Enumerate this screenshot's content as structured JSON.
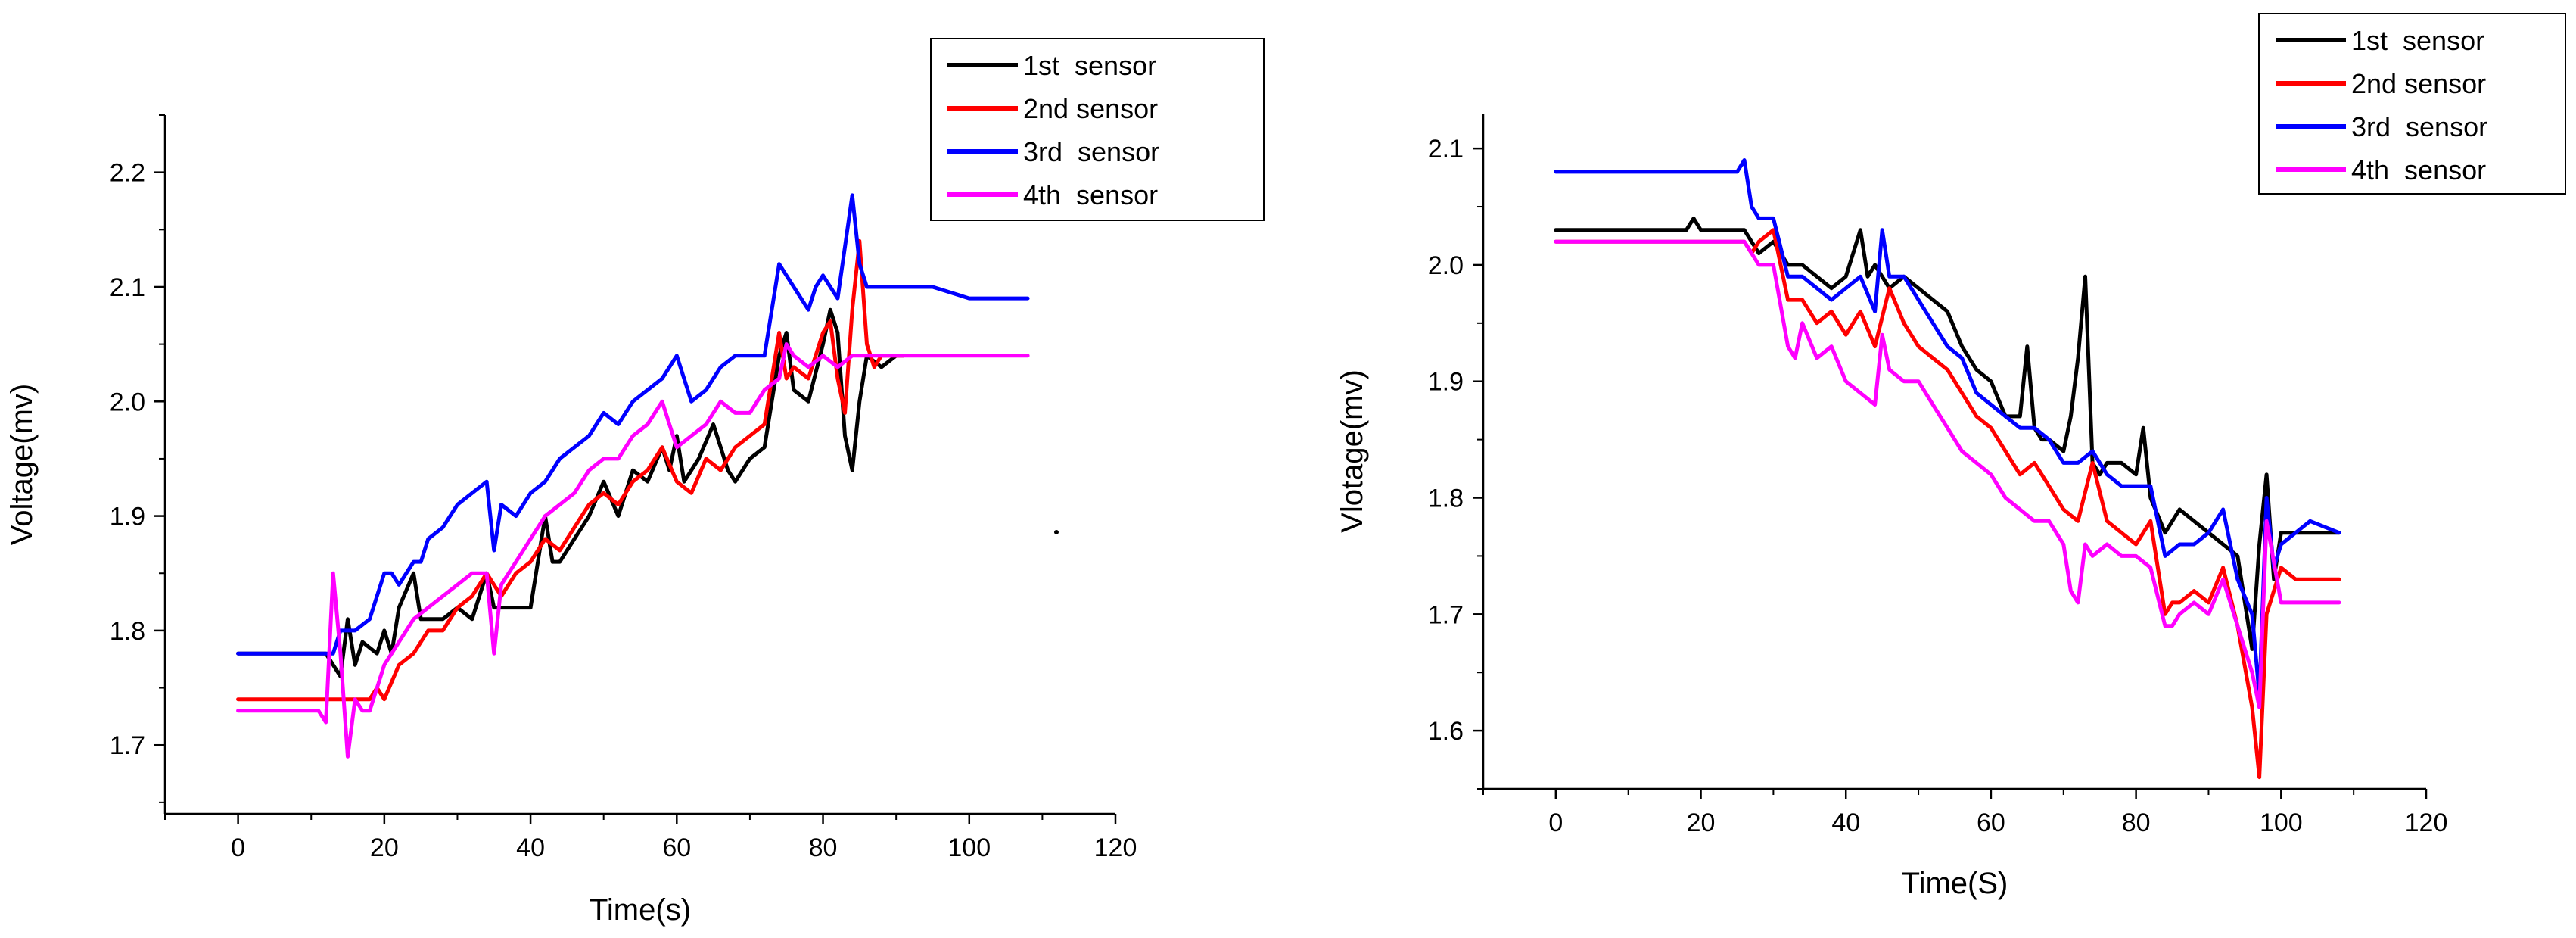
{
  "chart_data": [
    {
      "type": "line",
      "title": "",
      "xlabel": "Time(s)",
      "ylabel": "Voltage(mv)",
      "xlim": [
        -10,
        120
      ],
      "ylim": [
        1.64,
        2.25
      ],
      "xticks": [
        "0",
        "20",
        "40",
        "60",
        "80",
        "100",
        "120"
      ],
      "yticks": [
        "1.7",
        "1.8",
        "1.9",
        "2.0",
        "2.1",
        "2.2"
      ],
      "legend_position": "top-right",
      "series": [
        {
          "name": "1st  sensor",
          "color": "#000000",
          "x": [
            0,
            12,
            14,
            15,
            16,
            17,
            19,
            20,
            21,
            22,
            24,
            25,
            26,
            28,
            30,
            32,
            34,
            35,
            36,
            40,
            42,
            43,
            44,
            46,
            48,
            50,
            52,
            54,
            56,
            58,
            59,
            60,
            61,
            63,
            65,
            66,
            67,
            68,
            70,
            72,
            74,
            75,
            76,
            78,
            80,
            81,
            82,
            83,
            84,
            85,
            86,
            88,
            90,
            91
          ],
          "y": [
            1.78,
            1.78,
            1.76,
            1.81,
            1.77,
            1.79,
            1.78,
            1.8,
            1.78,
            1.82,
            1.85,
            1.81,
            1.81,
            1.81,
            1.82,
            1.81,
            1.85,
            1.82,
            1.82,
            1.82,
            1.9,
            1.86,
            1.86,
            1.88,
            1.9,
            1.93,
            1.9,
            1.94,
            1.93,
            1.96,
            1.94,
            1.97,
            1.93,
            1.95,
            1.98,
            1.96,
            1.94,
            1.93,
            1.95,
            1.96,
            2.04,
            2.06,
            2.01,
            2.0,
            2.05,
            2.08,
            2.06,
            1.97,
            1.94,
            2.0,
            2.04,
            2.03,
            2.04,
            2.04
          ]
        },
        {
          "name": "2nd sensor",
          "color": "#ff0000",
          "x": [
            0,
            18,
            19,
            20,
            22,
            24,
            26,
            28,
            30,
            32,
            34,
            36,
            38,
            40,
            42,
            44,
            46,
            48,
            50,
            52,
            54,
            56,
            58,
            60,
            62,
            64,
            66,
            68,
            70,
            72,
            74,
            75,
            76,
            78,
            80,
            81,
            82,
            83,
            84,
            85,
            86,
            87,
            88,
            90,
            91
          ],
          "y": [
            1.74,
            1.74,
            1.75,
            1.74,
            1.77,
            1.78,
            1.8,
            1.8,
            1.82,
            1.83,
            1.85,
            1.83,
            1.85,
            1.86,
            1.88,
            1.87,
            1.89,
            1.91,
            1.92,
            1.91,
            1.93,
            1.94,
            1.96,
            1.93,
            1.92,
            1.95,
            1.94,
            1.96,
            1.97,
            1.98,
            2.06,
            2.02,
            2.03,
            2.02,
            2.06,
            2.07,
            2.02,
            1.99,
            2.08,
            2.14,
            2.05,
            2.03,
            2.04,
            2.04,
            2.04
          ]
        },
        {
          "name": "3rd  sensor",
          "color": "#0000ff",
          "x": [
            0,
            13,
            14,
            16,
            18,
            20,
            21,
            22,
            24,
            25,
            26,
            28,
            30,
            32,
            34,
            35,
            36,
            38,
            40,
            42,
            44,
            46,
            48,
            50,
            52,
            54,
            56,
            58,
            60,
            62,
            64,
            66,
            68,
            70,
            72,
            74,
            75,
            76,
            78,
            79,
            80,
            82,
            84,
            85,
            86,
            88,
            90,
            95,
            100,
            108
          ],
          "y": [
            1.78,
            1.78,
            1.8,
            1.8,
            1.81,
            1.85,
            1.85,
            1.84,
            1.86,
            1.86,
            1.88,
            1.89,
            1.91,
            1.92,
            1.93,
            1.87,
            1.91,
            1.9,
            1.92,
            1.93,
            1.95,
            1.96,
            1.97,
            1.99,
            1.98,
            2.0,
            2.01,
            2.02,
            2.04,
            2.0,
            2.01,
            2.03,
            2.04,
            2.04,
            2.04,
            2.12,
            2.11,
            2.1,
            2.08,
            2.1,
            2.11,
            2.09,
            2.18,
            2.12,
            2.1,
            2.1,
            2.1,
            2.1,
            2.09,
            2.09
          ]
        },
        {
          "name": "4th  sensor",
          "color": "#ff00ff",
          "x": [
            0,
            11,
            12,
            13,
            14,
            15,
            16,
            17,
            18,
            19,
            20,
            22,
            24,
            26,
            28,
            30,
            32,
            34,
            35,
            36,
            38,
            40,
            42,
            44,
            46,
            48,
            50,
            52,
            54,
            56,
            58,
            59,
            60,
            62,
            64,
            66,
            68,
            70,
            72,
            74,
            75,
            76,
            78,
            80,
            82,
            84,
            86,
            88,
            90,
            95,
            100,
            108
          ],
          "y": [
            1.73,
            1.73,
            1.72,
            1.85,
            1.78,
            1.69,
            1.74,
            1.73,
            1.73,
            1.75,
            1.77,
            1.79,
            1.81,
            1.82,
            1.83,
            1.84,
            1.85,
            1.85,
            1.78,
            1.84,
            1.86,
            1.88,
            1.9,
            1.91,
            1.92,
            1.94,
            1.95,
            1.95,
            1.97,
            1.98,
            2.0,
            1.98,
            1.96,
            1.97,
            1.98,
            2.0,
            1.99,
            1.99,
            2.01,
            2.02,
            2.05,
            2.04,
            2.03,
            2.04,
            2.03,
            2.04,
            2.04,
            2.04,
            2.04,
            2.04,
            2.04,
            2.04
          ]
        }
      ]
    },
    {
      "type": "line",
      "title": "",
      "xlabel": "Time(S)",
      "ylabel": "Vlotage(mv)",
      "xlim": [
        -10,
        120
      ],
      "ylim": [
        1.55,
        2.13
      ],
      "xticks": [
        "0",
        "20",
        "40",
        "60",
        "80",
        "100",
        "120"
      ],
      "yticks": [
        "1.6",
        "1.7",
        "1.8",
        "1.9",
        "2.0",
        "2.1"
      ],
      "legend_position": "top-right",
      "series": [
        {
          "name": "1st  sensor",
          "color": "#000000",
          "x": [
            0,
            18,
            19,
            20,
            26,
            28,
            30,
            32,
            34,
            36,
            38,
            40,
            42,
            43,
            44,
            46,
            48,
            50,
            52,
            54,
            56,
            58,
            60,
            62,
            64,
            65,
            66,
            67,
            68,
            70,
            71,
            72,
            73,
            74,
            75,
            76,
            78,
            80,
            81,
            82,
            84,
            86,
            88,
            90,
            92,
            94,
            96,
            97,
            98,
            99,
            100,
            102,
            104,
            108
          ],
          "y": [
            2.03,
            2.03,
            2.04,
            2.03,
            2.03,
            2.01,
            2.02,
            2.0,
            2.0,
            1.99,
            1.98,
            1.99,
            2.03,
            1.99,
            2.0,
            1.98,
            1.99,
            1.98,
            1.97,
            1.96,
            1.93,
            1.91,
            1.9,
            1.87,
            1.87,
            1.93,
            1.86,
            1.85,
            1.85,
            1.84,
            1.87,
            1.92,
            1.99,
            1.83,
            1.82,
            1.83,
            1.83,
            1.82,
            1.86,
            1.8,
            1.77,
            1.79,
            1.78,
            1.77,
            1.76,
            1.75,
            1.67,
            1.76,
            1.82,
            1.73,
            1.77,
            1.77,
            1.77,
            1.77
          ]
        },
        {
          "name": "2nd sensor",
          "color": "#ff0000",
          "x": [
            0,
            26,
            27,
            28,
            30,
            32,
            34,
            36,
            38,
            40,
            42,
            44,
            46,
            48,
            50,
            52,
            54,
            56,
            58,
            60,
            62,
            64,
            66,
            68,
            70,
            72,
            74,
            76,
            78,
            80,
            82,
            84,
            85,
            86,
            88,
            90,
            92,
            94,
            96,
            97,
            98,
            100,
            102,
            104,
            108
          ],
          "y": [
            2.02,
            2.02,
            2.01,
            2.02,
            2.03,
            1.97,
            1.97,
            1.95,
            1.96,
            1.94,
            1.96,
            1.93,
            1.98,
            1.95,
            1.93,
            1.92,
            1.91,
            1.89,
            1.87,
            1.86,
            1.84,
            1.82,
            1.83,
            1.81,
            1.79,
            1.78,
            1.83,
            1.78,
            1.77,
            1.76,
            1.78,
            1.7,
            1.71,
            1.71,
            1.72,
            1.71,
            1.74,
            1.69,
            1.62,
            1.56,
            1.7,
            1.74,
            1.73,
            1.73,
            1.73
          ]
        },
        {
          "name": "3rd  sensor",
          "color": "#0000ff",
          "x": [
            0,
            25,
            26,
            27,
            28,
            29,
            30,
            32,
            34,
            36,
            38,
            40,
            42,
            44,
            45,
            46,
            48,
            50,
            52,
            54,
            56,
            58,
            60,
            62,
            64,
            66,
            68,
            70,
            72,
            74,
            76,
            78,
            80,
            82,
            84,
            86,
            88,
            90,
            92,
            94,
            96,
            97,
            98,
            99,
            100,
            102,
            104,
            108
          ],
          "y": [
            2.08,
            2.08,
            2.09,
            2.05,
            2.04,
            2.04,
            2.04,
            1.99,
            1.99,
            1.98,
            1.97,
            1.98,
            1.99,
            1.96,
            2.03,
            1.99,
            1.99,
            1.97,
            1.95,
            1.93,
            1.92,
            1.89,
            1.88,
            1.87,
            1.86,
            1.86,
            1.85,
            1.83,
            1.83,
            1.84,
            1.82,
            1.81,
            1.81,
            1.81,
            1.75,
            1.76,
            1.76,
            1.77,
            1.79,
            1.73,
            1.7,
            1.63,
            1.8,
            1.74,
            1.76,
            1.77,
            1.78,
            1.77
          ]
        },
        {
          "name": "4th  sensor",
          "color": "#ff00ff",
          "x": [
            0,
            26,
            27,
            28,
            30,
            32,
            33,
            34,
            36,
            38,
            40,
            42,
            44,
            45,
            46,
            48,
            50,
            52,
            54,
            56,
            58,
            60,
            62,
            64,
            66,
            68,
            70,
            71,
            72,
            73,
            74,
            76,
            78,
            80,
            82,
            84,
            85,
            86,
            88,
            90,
            92,
            94,
            96,
            97,
            98,
            100,
            102,
            104,
            108
          ],
          "y": [
            2.02,
            2.02,
            2.01,
            2.0,
            2.0,
            1.93,
            1.92,
            1.95,
            1.92,
            1.93,
            1.9,
            1.89,
            1.88,
            1.94,
            1.91,
            1.9,
            1.9,
            1.88,
            1.86,
            1.84,
            1.83,
            1.82,
            1.8,
            1.79,
            1.78,
            1.78,
            1.76,
            1.72,
            1.71,
            1.76,
            1.75,
            1.76,
            1.75,
            1.75,
            1.74,
            1.69,
            1.69,
            1.7,
            1.71,
            1.7,
            1.73,
            1.69,
            1.65,
            1.62,
            1.78,
            1.71,
            1.71,
            1.71,
            1.71
          ]
        }
      ]
    }
  ]
}
